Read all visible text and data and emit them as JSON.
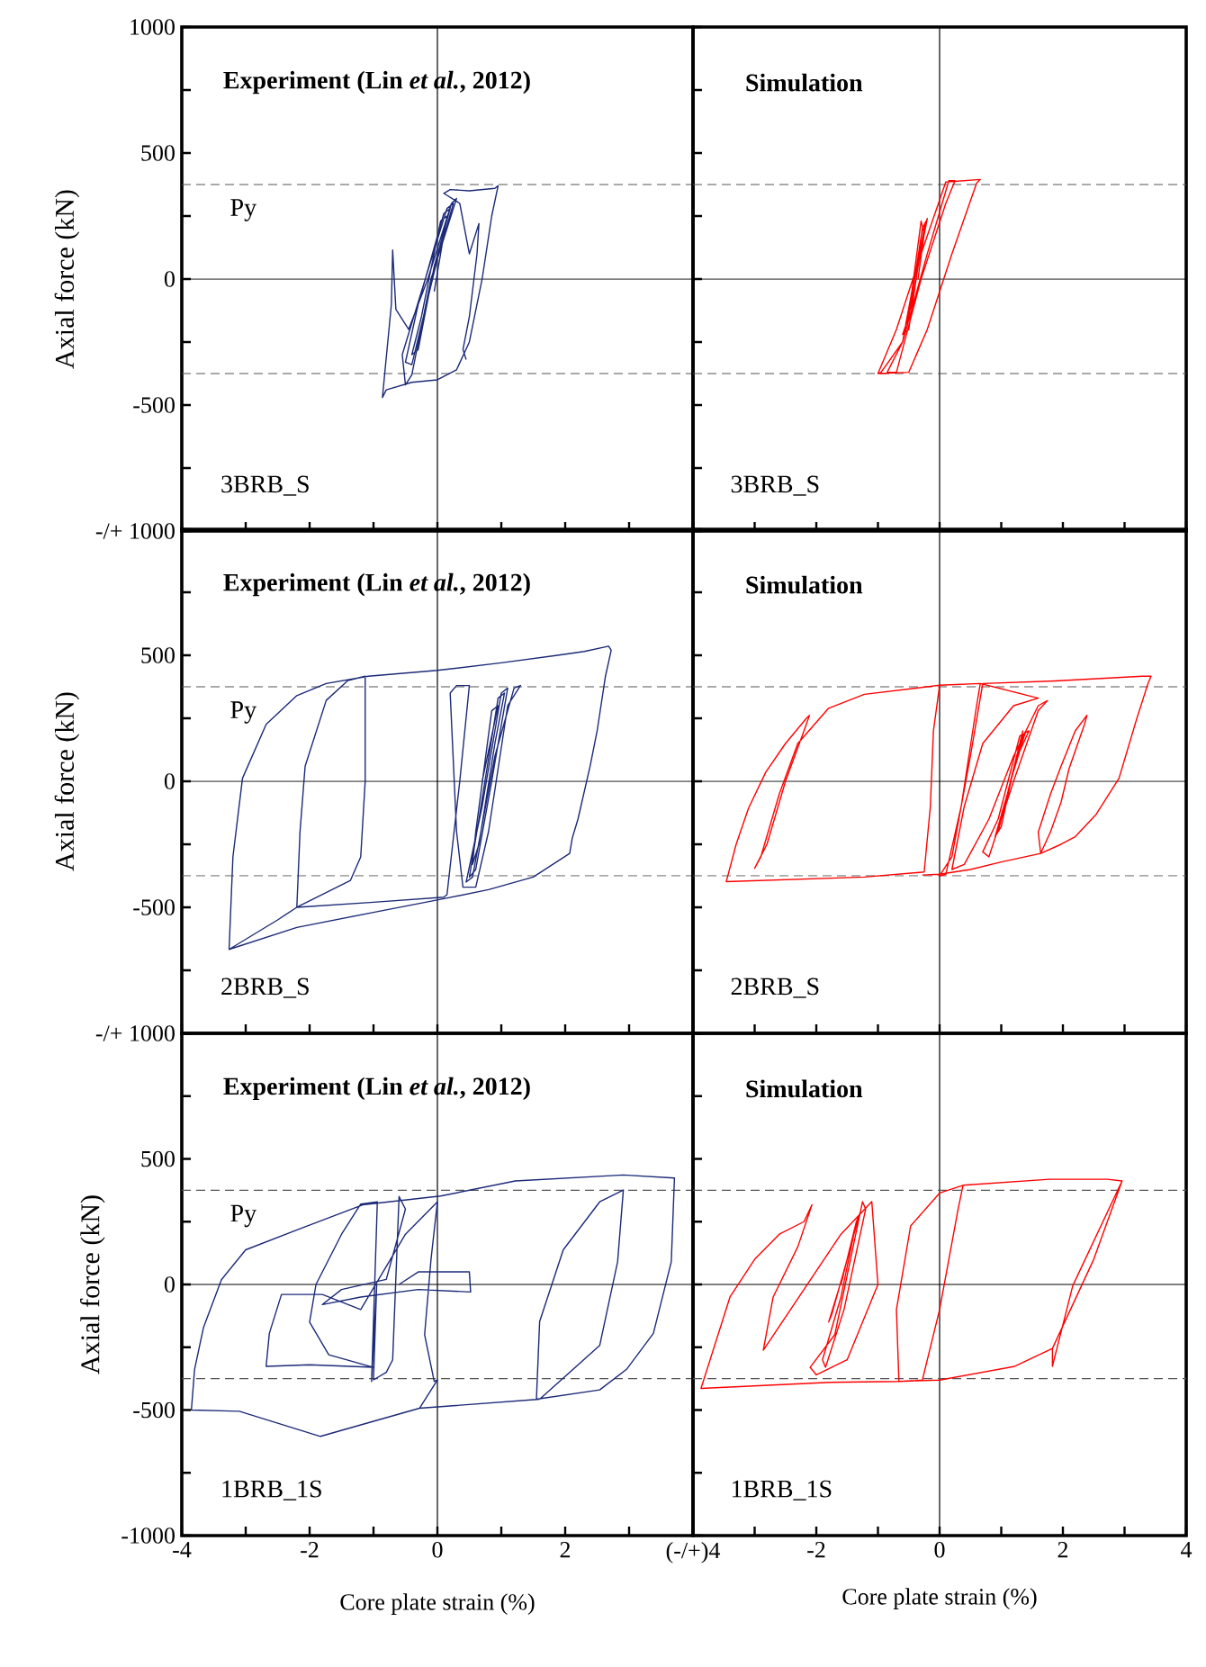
{
  "chart_data": [
    {
      "type": "line",
      "title": "Experiment (Lin *et al.*, 2012)",
      "ylabel": "Axial force (kN)",
      "annotations": [
        "3BRB_S"
      ],
      "xlim": [
        -4,
        4
      ],
      "ylim": [
        -1000,
        1000
      ],
      "tick_labels": "y",
      "xticks": [
        -4,
        {
          "value": -3,
          "label": null
        },
        -2,
        {
          "value": -1,
          "label": null
        },
        0,
        {
          "value": 1,
          "label": null
        },
        2,
        {
          "value": 3,
          "label": null
        },
        {
          "value": 4,
          "label": null
        }
      ],
      "yticks": [
        {
          "value": -1000,
          "label": "-/+ 1000"
        },
        {
          "value": -750,
          "label": null
        },
        -500,
        {
          "value": -250,
          "label": null
        },
        0,
        {
          "value": 250,
          "label": null
        },
        500,
        {
          "value": 750,
          "label": null
        },
        1000
      ],
      "ref_lines": [
        {
          "axis": "x",
          "value": 0,
          "color": "#000000",
          "line_style": "solid"
        },
        {
          "axis": "y",
          "value": 0,
          "color": "#000000",
          "line_style": "solid"
        },
        {
          "axis": "y",
          "value": 375,
          "label": "Py",
          "color": "#555555",
          "line_style": "dashed"
        },
        {
          "axis": "y",
          "value": -375,
          "color": "#555555",
          "line_style": "dashed"
        }
      ],
      "series": [
        {
          "color": "#1c2a78",
          "x": [
            -0.05,
            0.15,
            0.05,
            -0.25,
            -0.4,
            -0.3,
            -0.05,
            0.2,
            0.1,
            -0.3,
            -0.5,
            -0.4,
            0,
            0.25,
            0.15,
            -0.25,
            -0.55,
            -0.5,
            -0.4,
            -0.1,
            0.3,
            0.22,
            -0.15,
            -0.45,
            -0.65,
            -0.7,
            -0.72,
            -0.86,
            -0.8,
            -0.4,
            0,
            0.3,
            0.5,
            0.7,
            0.85,
            0.95,
            0.9,
            0.5,
            0.2,
            0.1,
            0.35,
            0.5,
            0.65,
            0.62,
            0.5,
            0.4,
            0.45
          ],
          "values": [
            -50,
            250,
            230,
            -150,
            -300,
            -280,
            50,
            280,
            260,
            -100,
            -330,
            -340,
            80,
            300,
            280,
            -50,
            -300,
            -420,
            -380,
            0,
            320,
            300,
            0,
            -200,
            -120,
            115,
            -100,
            -470,
            -440,
            -410,
            -400,
            -360,
            -250,
            0,
            250,
            370,
            360,
            350,
            355,
            340,
            300,
            100,
            220,
            100,
            -150,
            -280,
            -320
          ]
        }
      ]
    },
    {
      "type": "line",
      "title": "Simulation",
      "annotations": [
        "3BRB_S"
      ],
      "xlim": [
        -4,
        4
      ],
      "ylim": [
        -1000,
        1000
      ],
      "tick_labels": false,
      "xticks": [
        {
          "value": -4,
          "label": null
        },
        {
          "value": -3,
          "label": null
        },
        -2,
        {
          "value": -1,
          "label": null
        },
        0,
        {
          "value": 1,
          "label": null
        },
        2,
        {
          "value": 3,
          "label": null
        },
        4
      ],
      "yticks": [
        -1000,
        -750,
        -500,
        -250,
        0,
        250,
        500,
        750,
        1000
      ],
      "ref_lines": [
        {
          "axis": "x",
          "value": 0,
          "color": "#000000",
          "line_style": "solid"
        },
        {
          "axis": "y",
          "value": 0,
          "color": "#000000",
          "line_style": "solid"
        },
        {
          "axis": "y",
          "value": 375,
          "color": "#555555",
          "line_style": "dashed"
        },
        {
          "axis": "y",
          "value": -375,
          "color": "#555555",
          "line_style": "dashed"
        }
      ],
      "series": [
        {
          "color": "#ff0000",
          "x": [
            -0.35,
            -0.25,
            -0.3,
            -0.45,
            -0.55,
            -0.45,
            -0.3,
            -0.22,
            -0.28,
            -0.5,
            -0.6,
            -0.5,
            -0.35,
            -0.2,
            -0.25,
            -0.6,
            -0.85,
            -0.7,
            -0.3,
            0.1,
            0.25,
            0.15,
            -0.2,
            -0.6,
            -0.95,
            -1.0,
            -0.7,
            -0.3,
            0.1,
            0.66,
            0.6,
            0.2,
            -0.2,
            -0.5,
            -1.0
          ],
          "values": [
            0,
            180,
            230,
            -50,
            -180,
            -100,
            120,
            230,
            200,
            -150,
            -220,
            -200,
            50,
            240,
            200,
            -250,
            -370,
            -370,
            0,
            300,
            390,
            390,
            100,
            -250,
            -370,
            -375,
            -200,
            100,
            385,
            395,
            380,
            100,
            -200,
            -370,
            -375
          ]
        }
      ]
    },
    {
      "type": "line",
      "title": "Experiment (Lin *et al.*, 2012)",
      "ylabel": "Axial force (kN)",
      "annotations": [
        "2BRB_S"
      ],
      "xlim": [
        -4,
        4
      ],
      "ylim": [
        -1000,
        1000
      ],
      "tick_labels": "y",
      "xticks": [
        -4,
        {
          "value": -3,
          "label": null
        },
        -2,
        {
          "value": -1,
          "label": null
        },
        0,
        {
          "value": 1,
          "label": null
        },
        2,
        {
          "value": 3,
          "label": null
        },
        {
          "value": 4,
          "label": null
        }
      ],
      "yticks": [
        {
          "value": -1000,
          "label": "-/+ 1000"
        },
        {
          "value": -750,
          "label": null
        },
        -500,
        {
          "value": -250,
          "label": null
        },
        0,
        {
          "value": 250,
          "label": null
        },
        500,
        {
          "value": 750,
          "label": null
        },
        {
          "value": 1000,
          "label": null
        }
      ],
      "ref_lines": [
        {
          "axis": "x",
          "value": 0,
          "color": "#000000",
          "line_style": "solid"
        },
        {
          "axis": "y",
          "value": 0,
          "color": "#000000",
          "line_style": "solid"
        },
        {
          "axis": "y",
          "value": 375,
          "label": "Py",
          "color": "#555555",
          "line_style": "dashed"
        },
        {
          "axis": "y",
          "value": -375,
          "color": "#555555",
          "line_style": "dashed"
        }
      ],
      "series": [
        {
          "color": "#1c2a78",
          "x": [
            0.7,
            0.95,
            0.85,
            0.6,
            0.55,
            0.65,
            0.9,
            1.05,
            0.95,
            0.65,
            0.5,
            0.6,
            0.85,
            1.1,
            1.0,
            0.7,
            0.45,
            0.55,
            0.9,
            1.2,
            1.3,
            1.1,
            0.8,
            0.6,
            0.4,
            0.3,
            0.2,
            0.3,
            0.5,
            0.35,
            0.15,
            0.1,
            -1.0,
            -2.2,
            -2.15,
            -2.07,
            -1.74,
            -1.4,
            -1.13,
            -1.13,
            -1.2,
            -1.36,
            -2.2,
            -2.5,
            -3.26,
            -3.2,
            -3.05,
            -2.68,
            -2.2,
            -1.74,
            -1.08,
            0,
            1.0,
            1.88,
            2.3,
            2.68,
            2.72,
            2.63,
            2.5,
            2.39,
            2.2,
            2.11,
            2.07,
            1.5,
            0.8,
            0.14,
            -1.0,
            -2.2,
            -3.26
          ],
          "values": [
            0,
            300,
            280,
            -200,
            -330,
            -250,
            150,
            350,
            330,
            -150,
            -380,
            -350,
            0,
            370,
            350,
            -100,
            -400,
            -380,
            100,
            370,
            380,
            300,
            -200,
            -420,
            -420,
            -200,
            350,
            380,
            380,
            0,
            -450,
            -460,
            -480,
            -500,
            -200,
            60,
            321,
            400,
            417,
            0,
            -300,
            -393,
            -500,
            -550,
            -667,
            -300,
            12,
            226,
            340,
            388,
            417,
            440,
            470,
            500,
            515,
            536,
            520,
            417,
            200,
            60,
            -150,
            -226,
            -286,
            -380,
            -430,
            -464,
            -520,
            -580,
            -667
          ]
        }
      ]
    },
    {
      "type": "line",
      "title": "Simulation",
      "annotations": [
        "2BRB_S"
      ],
      "xlim": [
        -4,
        4
      ],
      "ylim": [
        -1000,
        1000
      ],
      "tick_labels": false,
      "xticks": [
        {
          "value": -4,
          "label": null
        },
        {
          "value": -3,
          "label": null
        },
        -2,
        {
          "value": -1,
          "label": null
        },
        0,
        {
          "value": 1,
          "label": null
        },
        2,
        {
          "value": 3,
          "label": null
        },
        4
      ],
      "yticks": [
        -1000,
        -750,
        -500,
        -250,
        0,
        250,
        500,
        750,
        1000
      ],
      "ref_lines": [
        {
          "axis": "x",
          "value": 0,
          "color": "#000000",
          "line_style": "solid"
        },
        {
          "axis": "y",
          "value": 0,
          "color": "#000000",
          "line_style": "solid"
        },
        {
          "axis": "y",
          "value": 375,
          "color": "#555555",
          "line_style": "dashed"
        },
        {
          "axis": "y",
          "value": -375,
          "color": "#555555",
          "line_style": "dashed"
        }
      ],
      "series": [
        {
          "color": "#ff0000",
          "x": [
            1.1,
            1.3,
            1.35,
            1.15,
            0.95,
            1.0,
            1.2,
            1.4,
            1.35,
            1.1,
            0.9,
            0.95,
            1.15,
            1.3,
            1.45,
            1.3,
            0.95,
            0.7,
            0.8,
            1.2,
            1.6,
            1.75,
            1.6,
            1.2,
            0.8,
            0.4,
            0.2,
            0.4,
            0.7,
            1.2,
            1.6,
            0.66,
            0,
            -0.1,
            -0.15,
            -0.25,
            -1.22,
            -3.46,
            -3.3,
            -3.1,
            -2.82,
            -2.5,
            -2.16,
            -2.11,
            -2.2,
            -2.5,
            -2.8,
            -3.0,
            -2.9,
            -2.6,
            -2.3,
            -1.8,
            -1.22,
            0,
            0.66,
            0.6,
            0.35,
            0.1,
            0,
            0.2,
            0.5,
            0.7,
            1.88,
            3.29,
            3.43,
            3.38,
            3.2,
            2.91,
            2.54,
            2.2,
            1.97,
            1.64,
            1.6,
            1.8,
            1.97,
            2.2,
            2.39,
            2.35,
            2.1,
            1.97,
            1.8,
            1.64,
            1.0,
            0.5,
            0,
            -0.28
          ],
          "values": [
            -50,
            150,
            200,
            0,
            -200,
            -180,
            50,
            200,
            180,
            -50,
            -220,
            -200,
            0,
            120,
            200,
            180,
            -150,
            -280,
            -300,
            0,
            280,
            320,
            300,
            100,
            -150,
            -330,
            -350,
            -100,
            150,
            300,
            330,
            388,
            381,
            200,
            -100,
            -360,
            -380,
            -398,
            -250,
            -107,
            36,
            150,
            250,
            262,
            200,
            0,
            -250,
            -345,
            -300,
            -50,
            150,
            290,
            345,
            381,
            388,
            300,
            -100,
            -370,
            -375,
            -300,
            100,
            388,
            398,
            417,
            417,
            388,
            250,
            12,
            -131,
            -220,
            -250,
            -286,
            -202,
            -50,
            60,
            200,
            262,
            226,
            50,
            -83,
            -200,
            -286,
            -320,
            -350,
            -369,
            -372
          ]
        }
      ]
    },
    {
      "type": "line",
      "title": "Experiment (Lin *et al.*, 2012)",
      "ylabel": "Axial force (kN)",
      "xlabel": "Core plate strain (%)",
      "annotations": [
        "1BRB_1S"
      ],
      "xlim": [
        -4,
        4
      ],
      "ylim": [
        -1000,
        1000
      ],
      "xticks": [
        -4,
        {
          "value": -3,
          "label": null
        },
        -2,
        {
          "value": -1,
          "label": null
        },
        0,
        {
          "value": 1,
          "label": null
        },
        2,
        {
          "value": 3,
          "label": null
        },
        {
          "value": 4,
          "label": "(-/+)4"
        }
      ],
      "yticks": [
        -1000,
        {
          "value": -750,
          "label": null
        },
        -500,
        {
          "value": -250,
          "label": null
        },
        0,
        {
          "value": 250,
          "label": null
        },
        500,
        {
          "value": 750,
          "label": null
        },
        {
          "value": 1000,
          "label": null
        }
      ],
      "ref_lines": [
        {
          "axis": "x",
          "value": 0,
          "color": "#000000",
          "line_style": "solid"
        },
        {
          "axis": "y",
          "value": 0,
          "color": "#000000",
          "line_style": "solid"
        },
        {
          "axis": "y",
          "value": 375,
          "label": "Py",
          "color": "#555555",
          "line_style": "dashed"
        },
        {
          "axis": "y",
          "value": -375,
          "color": "#555555",
          "line_style": "dashed"
        }
      ],
      "series": [
        {
          "color": "#1c2a78",
          "x": [
            -0.6,
            -0.3,
            0.5,
            0.52,
            -0.3,
            -1.2,
            -1.8,
            -1.5,
            -0.8,
            -0.5,
            -0.6,
            -0.7,
            -0.8,
            -1.0,
            -0.95,
            -1.03,
            -0.94,
            -1.2,
            -1.5,
            -1.9,
            -2.0,
            -1.7,
            -1.0,
            -2.0,
            -2.68,
            -2.63,
            -2.44,
            -1.8,
            -1.2,
            -0.5,
            0,
            -0.1,
            -0.2,
            -0.05,
            0,
            -0.28,
            -1.83,
            -3.1,
            -3.85,
            -3.8,
            -3.66,
            -3.38,
            -3.0,
            -2.16,
            -1.17,
            0.05,
            1.22,
            2.91,
            3.71,
            3.66,
            3.38,
            2.96,
            2.54,
            1.55,
            1.6,
            1.97,
            2.54,
            2.91,
            2.82,
            2.54,
            1.6,
            -0.28
          ],
          "values": [
            0,
            50,
            50,
            -30,
            -20,
            -50,
            -80,
            -20,
            20,
            300,
            350,
            -300,
            -350,
            -380,
            0,
            -386,
            329,
            320,
            200,
            0,
            -150,
            -280,
            -330,
            -320,
            -326,
            -195,
            -40,
            -40,
            -100,
            200,
            329,
            100,
            -200,
            -386,
            -380,
            -493,
            -605,
            -505,
            -500,
            -338,
            -171,
            19,
            138,
            221,
            317,
            352,
            412,
            436,
            424,
            90,
            -195,
            -338,
            -420,
            -457,
            -148,
            138,
            329,
            376,
            90,
            -243,
            -457,
            -493
          ]
        }
      ]
    },
    {
      "type": "line",
      "title": "Simulation",
      "xlabel": "Core plate strain (%)",
      "annotations": [
        "1BRB_1S"
      ],
      "xlim": [
        -4,
        4
      ],
      "ylim": [
        -1000,
        1000
      ],
      "tick_labels": "x",
      "xticks": [
        {
          "value": -4,
          "label": null
        },
        {
          "value": -3,
          "label": null
        },
        -2,
        {
          "value": -1,
          "label": null
        },
        0,
        {
          "value": 1,
          "label": null
        },
        2,
        {
          "value": 3,
          "label": null
        },
        4
      ],
      "yticks": [
        -1000,
        -750,
        -500,
        -250,
        0,
        250,
        500,
        750,
        1000
      ],
      "ref_lines": [
        {
          "axis": "x",
          "value": 0,
          "color": "#000000",
          "line_style": "solid"
        },
        {
          "axis": "y",
          "value": 0,
          "color": "#000000",
          "line_style": "solid"
        },
        {
          "axis": "y",
          "value": 375,
          "color": "#555555",
          "line_style": "dashed"
        },
        {
          "axis": "y",
          "value": -375,
          "color": "#555555",
          "line_style": "dashed"
        }
      ],
      "series": [
        {
          "color": "#ff0000",
          "x": [
            -1.6,
            -1.4,
            -1.35,
            -1.55,
            -1.8,
            -1.75,
            -1.5,
            -1.3,
            -1.35,
            -1.6,
            -1.9,
            -1.85,
            -1.55,
            -1.2,
            -1.25,
            -1.7,
            -2.1,
            -2.0,
            -1.5,
            -1.0,
            -1.1,
            -1.6,
            -2.86,
            -2.7,
            -2.3,
            -2.07,
            -2.2,
            -2.6,
            -3.0,
            -3.4,
            -3.87,
            -1.78,
            -0.66,
            -0.7,
            -0.47,
            0,
            0.38,
            0.3,
            0,
            -0.28,
            -0.66,
            0,
            1.22,
            1.83,
            1.83,
            2.16,
            2.96,
            2.72,
            1.78,
            0.38,
            0,
            -0.47,
            -0.7,
            -0.66,
            0,
            1.22,
            1.83,
            2.5,
            2.96
          ],
          "values": [
            0,
            200,
            250,
            50,
            -150,
            -120,
            100,
            280,
            250,
            -50,
            -300,
            -330,
            -100,
            300,
            330,
            -200,
            -330,
            -360,
            -300,
            0,
            330,
            200,
            -262,
            -50,
            150,
            317,
            250,
            200,
            100,
            -50,
            -414,
            -390,
            -386,
            -100,
            233,
            364,
            395,
            300,
            -100,
            -381,
            -386,
            -381,
            -326,
            -255,
            -326,
            -5,
            412,
            419,
            419,
            395,
            364,
            233,
            -100,
            -386,
            -381,
            -326,
            -255,
            100,
            412
          ]
        }
      ]
    }
  ]
}
